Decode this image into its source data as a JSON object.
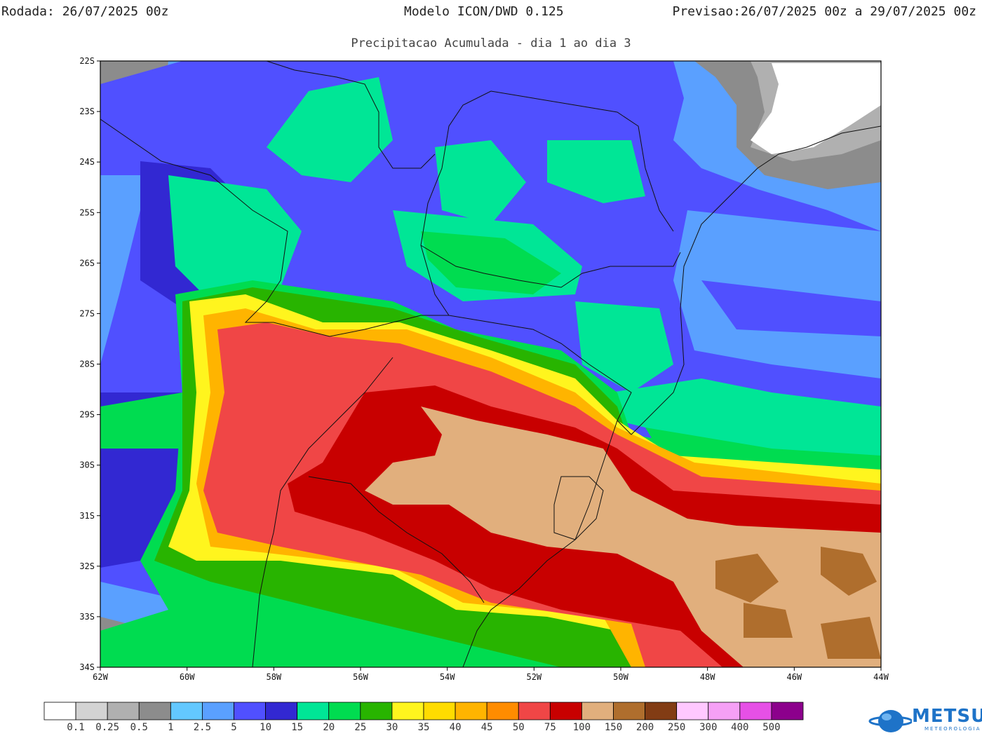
{
  "header": {
    "run_label": "Rodada:",
    "run_value": "26/07/2025 00z",
    "model": "Modelo ICON/DWD 0.125",
    "forecast_label": "Previsao:",
    "forecast_value": "26/07/2025 00z a 29/07/2025 00z",
    "subtitle": "Precipitacao Acumulada - dia 1 ao dia 3"
  },
  "map": {
    "lat_labels": [
      "22S",
      "23S",
      "24S",
      "25S",
      "26S",
      "27S",
      "28S",
      "29S",
      "30S",
      "31S",
      "32S",
      "33S",
      "34S"
    ],
    "lon_labels": [
      "62W",
      "60W",
      "58W",
      "56W",
      "54W",
      "52W",
      "50W",
      "48W",
      "46W",
      "44W"
    ],
    "lat_range": [
      -34,
      -22
    ],
    "lon_range": [
      -62,
      -44
    ]
  },
  "legend": {
    "colors": [
      "#ffffff",
      "#d3d3d3",
      "#b0b0b0",
      "#8c8c8c",
      "#63c8ff",
      "#5aa0ff",
      "#5050ff",
      "#3228d2",
      "#00e696",
      "#00dc50",
      "#28b400",
      "#fff51e",
      "#ffdc00",
      "#ffb400",
      "#ff8c00",
      "#f04646",
      "#c80000",
      "#e1af7d",
      "#af6e2d",
      "#823c14",
      "#ffc8ff",
      "#f5a0f5",
      "#e650e6",
      "#8c008c"
    ],
    "labels": [
      "0.1",
      "0.25",
      "0.5",
      "1",
      "2.5",
      "5",
      "10",
      "15",
      "20",
      "25",
      "30",
      "35",
      "40",
      "45",
      "50",
      "75",
      "100",
      "150",
      "200",
      "250",
      "300",
      "400",
      "500"
    ]
  },
  "logo": {
    "name": "METSUL",
    "sub": "METEOROLOGIA"
  }
}
